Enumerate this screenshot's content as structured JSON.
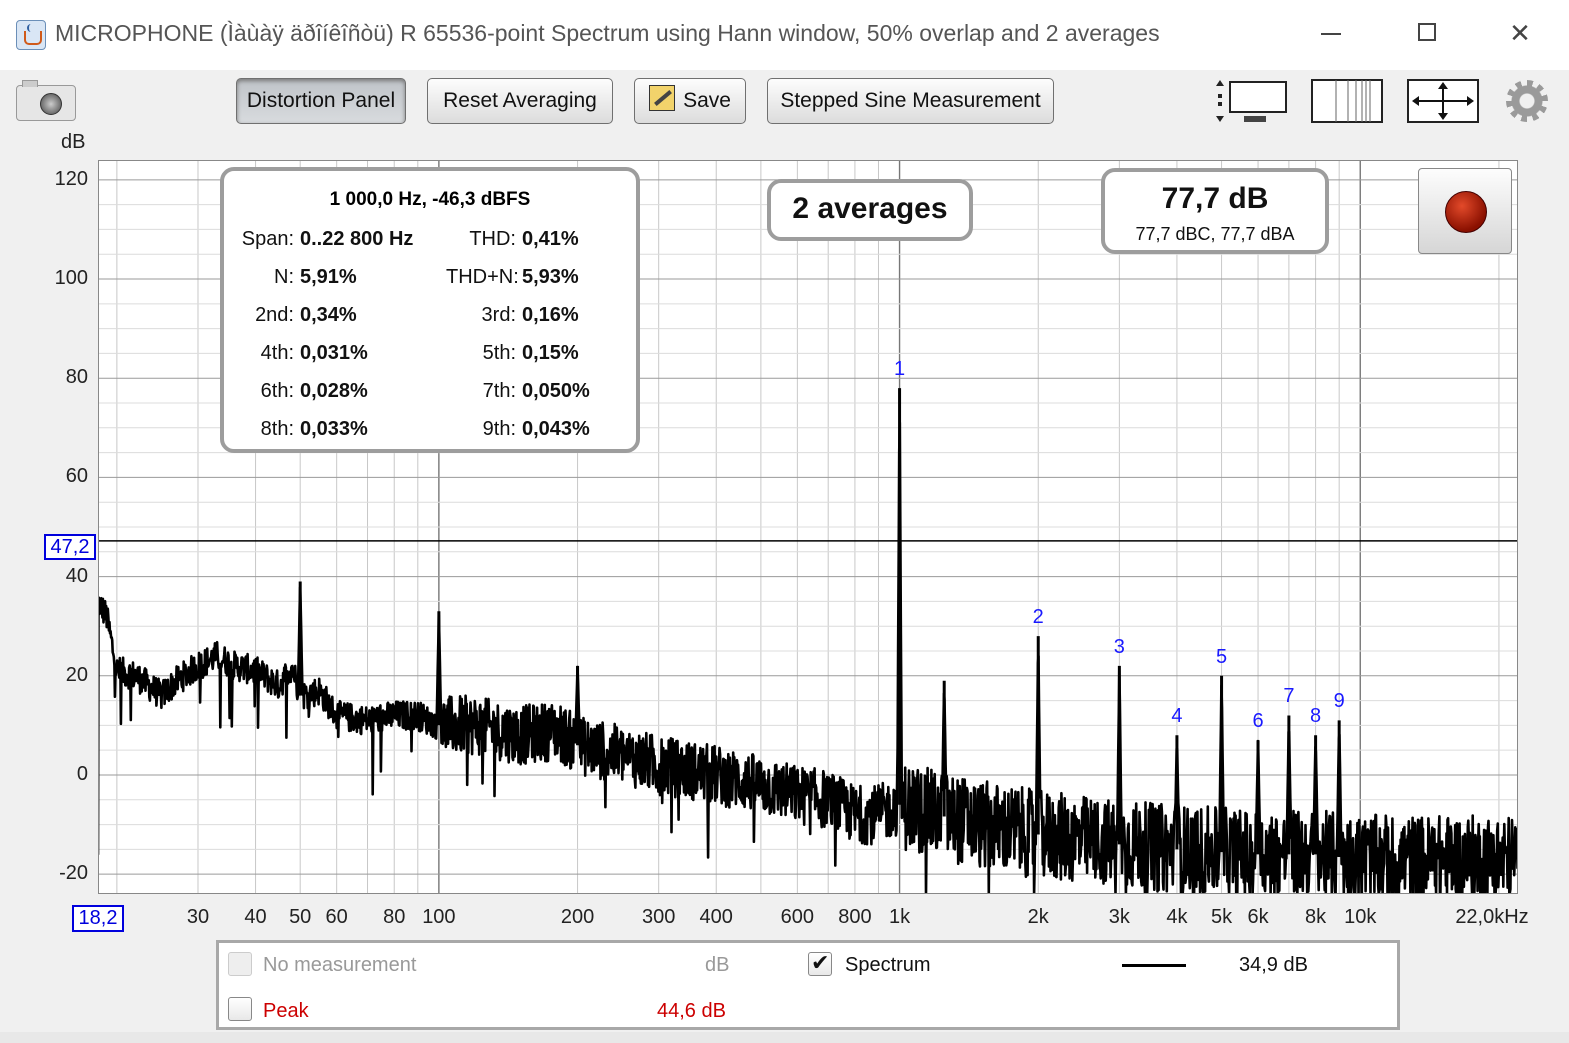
{
  "window": {
    "title": "MICROPHONE (Ìàùàÿ äðîíêîñòü) R 65536-point Spectrum using Hann window, 50% overlap and 2 averages",
    "min_glyph": "",
    "max_glyph": "",
    "close_glyph": "✕"
  },
  "toolbar": {
    "distortion_panel": "Distortion Panel",
    "reset_averaging": "Reset Averaging",
    "save": "Save",
    "stepped_sine": "Stepped Sine Measurement",
    "icons": [
      "camera-icon",
      "fit-vertical-icon",
      "grid-columns-icon",
      "fit-both-icon",
      "gear-icon"
    ]
  },
  "distortion": {
    "header": "1 000,0 Hz, -46,3 dBFS",
    "rows": [
      {
        "l1": "Span:",
        "v1": "0..22 800 Hz",
        "l2": "THD:",
        "v2": "0,41%"
      },
      {
        "l1": "N:",
        "v1": "5,91%",
        "l2": "THD+N:",
        "v2": "5,93%"
      },
      {
        "l1": "2nd:",
        "v1": "0,34%",
        "l2": "3rd:",
        "v2": "0,16%"
      },
      {
        "l1": "4th:",
        "v1": "0,031%",
        "l2": "5th:",
        "v2": "0,15%"
      },
      {
        "l1": "6th:",
        "v1": "0,028%",
        "l2": "7th:",
        "v2": "0,050%"
      },
      {
        "l1": "8th:",
        "v1": "0,033%",
        "l2": "9th:",
        "v2": "0,043%"
      }
    ]
  },
  "averages": "2 averages",
  "level": {
    "main": "77,7 dB",
    "sub": "77,7 dBC, 77,7 dBA"
  },
  "colors": {
    "trace": "#000000",
    "cursor": "#0000dd",
    "harmonic_labels": "#1a1aff",
    "peak_text": "#cc0000"
  },
  "chart_data": {
    "type": "line",
    "ylabel": "dB",
    "x_scale": "log",
    "xlim": [
      18.2,
      22000
    ],
    "ylim": [
      -24,
      124
    ],
    "yticks": [
      120,
      100,
      80,
      60,
      40,
      20,
      0,
      -20
    ],
    "ytick_labels": [
      "120",
      "100",
      "80",
      "60",
      "40",
      "20",
      "0",
      "-20"
    ],
    "xtick_labels": [
      {
        "v": 30,
        "t": "30"
      },
      {
        "v": 40,
        "t": "40"
      },
      {
        "v": 50,
        "t": "50"
      },
      {
        "v": 60,
        "t": "60"
      },
      {
        "v": 80,
        "t": "80"
      },
      {
        "v": 100,
        "t": "100"
      },
      {
        "v": 200,
        "t": "200"
      },
      {
        "v": 300,
        "t": "300"
      },
      {
        "v": 400,
        "t": "400"
      },
      {
        "v": 600,
        "t": "600"
      },
      {
        "v": 800,
        "t": "800"
      },
      {
        "v": 1000,
        "t": "1k"
      },
      {
        "v": 2000,
        "t": "2k"
      },
      {
        "v": 3000,
        "t": "3k"
      },
      {
        "v": 4000,
        "t": "4k"
      },
      {
        "v": 5000,
        "t": "5k"
      },
      {
        "v": 6000,
        "t": "6k"
      },
      {
        "v": 8000,
        "t": "8k"
      },
      {
        "v": 10000,
        "t": "10k"
      },
      {
        "v": 22000,
        "t": "22,0kHz"
      }
    ],
    "cursor_x_label": "18,2",
    "cursor_y_value": 47.2,
    "cursor_y_label": "47,2",
    "grid": true,
    "baseline": [
      [
        18.2,
        35
      ],
      [
        19,
        32
      ],
      [
        20,
        21
      ],
      [
        22,
        20
      ],
      [
        25,
        16
      ],
      [
        27,
        19
      ],
      [
        30,
        22
      ],
      [
        33,
        24
      ],
      [
        36,
        22
      ],
      [
        40,
        21
      ],
      [
        45,
        18
      ],
      [
        48,
        22
      ],
      [
        50,
        16
      ],
      [
        55,
        17
      ],
      [
        60,
        12
      ],
      [
        70,
        11
      ],
      [
        80,
        12
      ],
      [
        90,
        12
      ],
      [
        100,
        10
      ],
      [
        120,
        10
      ],
      [
        150,
        8
      ],
      [
        180,
        9
      ],
      [
        200,
        6
      ],
      [
        250,
        4
      ],
      [
        300,
        2
      ],
      [
        400,
        0
      ],
      [
        500,
        -2
      ],
      [
        600,
        -4
      ],
      [
        700,
        -5
      ],
      [
        800,
        -8
      ],
      [
        900,
        -8
      ],
      [
        1000,
        -6
      ],
      [
        1200,
        -8
      ],
      [
        1500,
        -10
      ],
      [
        2000,
        -12
      ],
      [
        3000,
        -14
      ],
      [
        4000,
        -15
      ],
      [
        6000,
        -16
      ],
      [
        8000,
        -16
      ],
      [
        10000,
        -17
      ],
      [
        15000,
        -17
      ],
      [
        22000,
        -17
      ]
    ],
    "peaks": [
      {
        "x": 50,
        "y": 39
      },
      {
        "x": 100,
        "y": 33
      },
      {
        "x": 200,
        "y": 22
      },
      {
        "x": 1000,
        "y": 78
      },
      {
        "x": 1250,
        "y": 19
      },
      {
        "x": 2000,
        "y": 28
      },
      {
        "x": 3000,
        "y": 22
      },
      {
        "x": 4000,
        "y": 8
      },
      {
        "x": 5000,
        "y": 20
      },
      {
        "x": 6000,
        "y": 7
      },
      {
        "x": 7000,
        "y": 12
      },
      {
        "x": 8000,
        "y": 8
      },
      {
        "x": 9000,
        "y": 11
      }
    ],
    "harmonics": [
      {
        "n": "1",
        "x": 1000,
        "y": 78
      },
      {
        "n": "2",
        "x": 2000,
        "y": 28
      },
      {
        "n": "3",
        "x": 3000,
        "y": 22
      },
      {
        "n": "4",
        "x": 4000,
        "y": 8
      },
      {
        "n": "5",
        "x": 5000,
        "y": 20
      },
      {
        "n": "6",
        "x": 6000,
        "y": 7
      },
      {
        "n": "7",
        "x": 7000,
        "y": 12
      },
      {
        "n": "8",
        "x": 8000,
        "y": 8
      },
      {
        "n": "9",
        "x": 9000,
        "y": 11
      }
    ]
  },
  "legend": {
    "no_measurement": "No measurement",
    "no_measurement_unit": "dB",
    "spectrum": "Spectrum",
    "spectrum_value": "34,9 dB",
    "peak": "Peak",
    "peak_value": "44,6 dB"
  }
}
